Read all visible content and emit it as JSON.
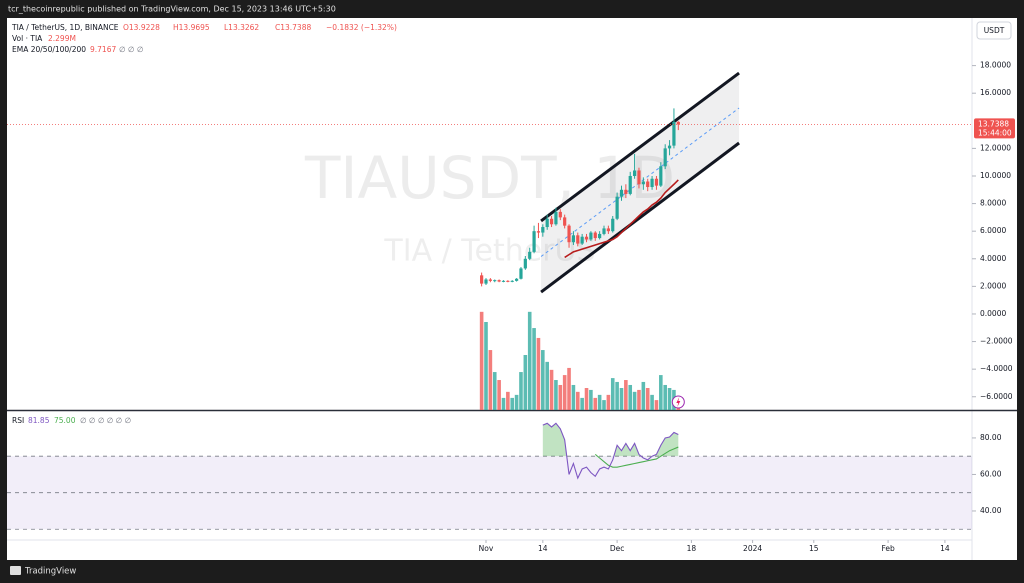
{
  "top_bar": {
    "text": "tcr_thecoinrepublic published on TradingView.com, Dec 15, 2023 13:46 UTC+5:30"
  },
  "footer": {
    "brand": "TradingView"
  },
  "chart_data": {
    "type": "candlestick",
    "symbol": "TIA / TetherUS, 1D, BINANCE",
    "ohlc_text": [
      "O13.9228",
      "H13.9695",
      "L13.3262",
      "C13.7388",
      "−0.1832 (−1.32%)"
    ],
    "currency_button": "USDT",
    "countdown": "15:44:00",
    "watermark": "TIAUSDT, 1D",
    "watermark_sub": "TIA / TetherUS",
    "up_color": "#26a69a",
    "down_color": "#ef5350",
    "grid": false,
    "x": [
      0,
      1,
      2,
      3,
      4,
      5,
      6,
      7,
      8,
      9,
      10,
      11,
      12,
      13,
      14,
      15,
      16,
      17,
      18,
      19,
      20,
      21,
      22,
      23,
      24,
      25,
      26,
      27,
      28,
      29,
      30,
      31,
      32,
      33,
      34,
      35,
      36,
      37,
      38,
      39,
      40,
      41,
      42,
      43,
      44,
      45
    ],
    "open": [
      2.8,
      2.2,
      2.5,
      2.4,
      2.45,
      2.35,
      2.4,
      2.35,
      2.4,
      2.55,
      3.3,
      4.0,
      4.5,
      6.0,
      5.9,
      6.3,
      6.9,
      6.5,
      7.4,
      7.0,
      6.4,
      5.2,
      5.7,
      5.1,
      5.6,
      5.4,
      5.9,
      5.5,
      5.8,
      6.2,
      6.0,
      6.9,
      8.5,
      9.0,
      8.7,
      10.0,
      10.4,
      9.4,
      9.6,
      9.2,
      9.8,
      9.3,
      10.7,
      12.0,
      12.2,
      13.9228
    ],
    "high": [
      3.0,
      2.6,
      2.6,
      2.5,
      2.5,
      2.45,
      2.45,
      2.45,
      2.6,
      3.4,
      4.2,
      4.8,
      6.4,
      6.6,
      6.5,
      7.2,
      7.1,
      7.7,
      7.6,
      7.2,
      6.5,
      6.0,
      5.9,
      5.8,
      5.8,
      6.0,
      6.0,
      6.0,
      6.4,
      6.4,
      7.1,
      8.8,
      9.3,
      9.4,
      10.3,
      11.6,
      10.6,
      9.9,
      9.8,
      10.0,
      10.0,
      11.0,
      12.3,
      12.6,
      14.9,
      13.9695
    ],
    "low": [
      2.0,
      2.1,
      2.3,
      2.3,
      2.3,
      2.3,
      2.3,
      2.3,
      2.35,
      2.5,
      3.2,
      3.9,
      4.4,
      5.5,
      5.6,
      6.1,
      6.3,
      6.4,
      6.8,
      6.2,
      4.8,
      5.0,
      4.9,
      5.0,
      5.2,
      5.3,
      5.3,
      5.4,
      5.7,
      5.8,
      5.9,
      6.8,
      8.2,
      8.4,
      8.6,
      9.8,
      9.1,
      9.0,
      8.9,
      9.0,
      9.0,
      9.2,
      10.5,
      11.5,
      12.0,
      13.3262
    ],
    "close": [
      2.2,
      2.5,
      2.4,
      2.45,
      2.35,
      2.4,
      2.35,
      2.4,
      2.55,
      3.3,
      4.0,
      4.5,
      6.0,
      5.9,
      6.3,
      6.9,
      6.5,
      7.4,
      7.0,
      6.4,
      5.2,
      5.7,
      5.1,
      5.6,
      5.4,
      5.9,
      5.5,
      5.8,
      6.2,
      6.0,
      6.9,
      8.5,
      9.0,
      8.7,
      10.0,
      10.4,
      9.4,
      9.6,
      9.2,
      9.8,
      9.3,
      10.7,
      12.0,
      12.2,
      13.9228,
      13.7388
    ],
    "xlim": [
      -108.6,
      112.2
    ],
    "xticks": [
      {
        "value": 1,
        "label": "Nov"
      },
      {
        "value": 14,
        "label": "14"
      },
      {
        "value": 31,
        "label": "Dec"
      },
      {
        "value": 48,
        "label": "18"
      },
      {
        "value": 62,
        "label": "2024"
      },
      {
        "value": 76,
        "label": "15"
      },
      {
        "value": 93,
        "label": "Feb"
      },
      {
        "value": 106,
        "label": "14"
      }
    ],
    "ylim": [
      -6.96,
      21.45
    ],
    "yticks": [
      {
        "value": 18,
        "label": "18.0000"
      },
      {
        "value": 16,
        "label": "16.0000"
      },
      {
        "value": 12,
        "label": "12.0000"
      },
      {
        "value": 10,
        "label": "10.0000"
      },
      {
        "value": 8,
        "label": "8.0000"
      },
      {
        "value": 6,
        "label": "6.0000"
      },
      {
        "value": 4,
        "label": "4.0000"
      },
      {
        "value": 2,
        "label": "2.0000"
      },
      {
        "value": 0,
        "label": "0.0000"
      },
      {
        "value": -2,
        "label": "−2.0000"
      },
      {
        "value": -4,
        "label": "−4.0000"
      },
      {
        "value": -6,
        "label": "−6.0000"
      }
    ],
    "channel": {
      "x": [
        13.6,
        58.9
      ],
      "upper": [
        6.74,
        17.46
      ],
      "lower": [
        1.59,
        12.39
      ]
    },
    "volume": {
      "name": "Vol · TIA",
      "value_label": "2.299M",
      "ylim": [
        0,
        40
      ],
      "values": [
        35.7,
        32.0,
        21.8,
        13.8,
        10.9,
        4.4,
        6.6,
        4.4,
        5.5,
        13.8,
        20.0,
        35.7,
        29.8,
        26.2,
        21.8,
        17.5,
        14.6,
        10.9,
        9.1,
        12.7,
        15.3,
        9.1,
        6.6,
        4.4,
        8.0,
        7.3,
        4.4,
        5.5,
        3.6,
        5.5,
        11.6,
        10.2,
        8.0,
        10.9,
        9.1,
        6.6,
        7.3,
        10.2,
        8.0,
        5.5,
        3.6,
        12.7,
        9.1,
        8.0,
        7.3,
        2.299
      ]
    },
    "ema": {
      "name": "EMA 20/50/100/200",
      "value_label": "9.7167",
      "extra": "∅ ∅ ∅",
      "color": "#b71c1c",
      "values": [
        null,
        null,
        null,
        null,
        null,
        null,
        null,
        null,
        null,
        null,
        null,
        null,
        null,
        null,
        null,
        null,
        null,
        null,
        null,
        4.1,
        4.3,
        4.5,
        4.6,
        4.7,
        4.8,
        4.9,
        5.0,
        5.1,
        5.2,
        5.3,
        5.4,
        5.6,
        5.9,
        6.2,
        6.5,
        6.8,
        7.1,
        7.4,
        7.6,
        7.9,
        8.1,
        8.4,
        8.8,
        9.1,
        9.4,
        9.7167
      ]
    },
    "rsi": {
      "name": "RSI",
      "value_label": "81.85",
      "ma_label": "75.00",
      "extra": "∅ ∅ ∅ ∅ ∅ ∅",
      "color": "#7e57c2",
      "ma_color": "#4caf50",
      "ylim": [
        24.1,
        94.2
      ],
      "yticks": [
        {
          "value": 80,
          "label": "80.00"
        },
        {
          "value": 60,
          "label": "60.00"
        },
        {
          "value": 40,
          "label": "40.00"
        }
      ],
      "bands": [
        70,
        50,
        30
      ],
      "values": [
        null,
        null,
        null,
        null,
        null,
        null,
        null,
        null,
        null,
        null,
        null,
        null,
        null,
        null,
        87,
        88,
        86,
        88,
        85,
        79,
        60,
        66,
        58,
        63,
        64,
        61,
        59,
        63,
        64,
        63,
        68,
        76,
        73,
        77,
        73,
        77,
        71,
        69,
        68,
        70,
        71,
        76,
        80,
        80.5,
        83,
        81.85
      ],
      "ma_values": [
        null,
        null,
        null,
        null,
        null,
        null,
        null,
        null,
        null,
        null,
        null,
        null,
        null,
        null,
        null,
        null,
        null,
        null,
        null,
        null,
        null,
        null,
        null,
        null,
        null,
        null,
        71,
        69,
        67,
        65,
        64,
        64,
        64.5,
        65,
        65.5,
        66,
        66.5,
        67,
        67.5,
        68,
        68.5,
        70,
        71.5,
        73,
        74,
        75
      ]
    }
  }
}
